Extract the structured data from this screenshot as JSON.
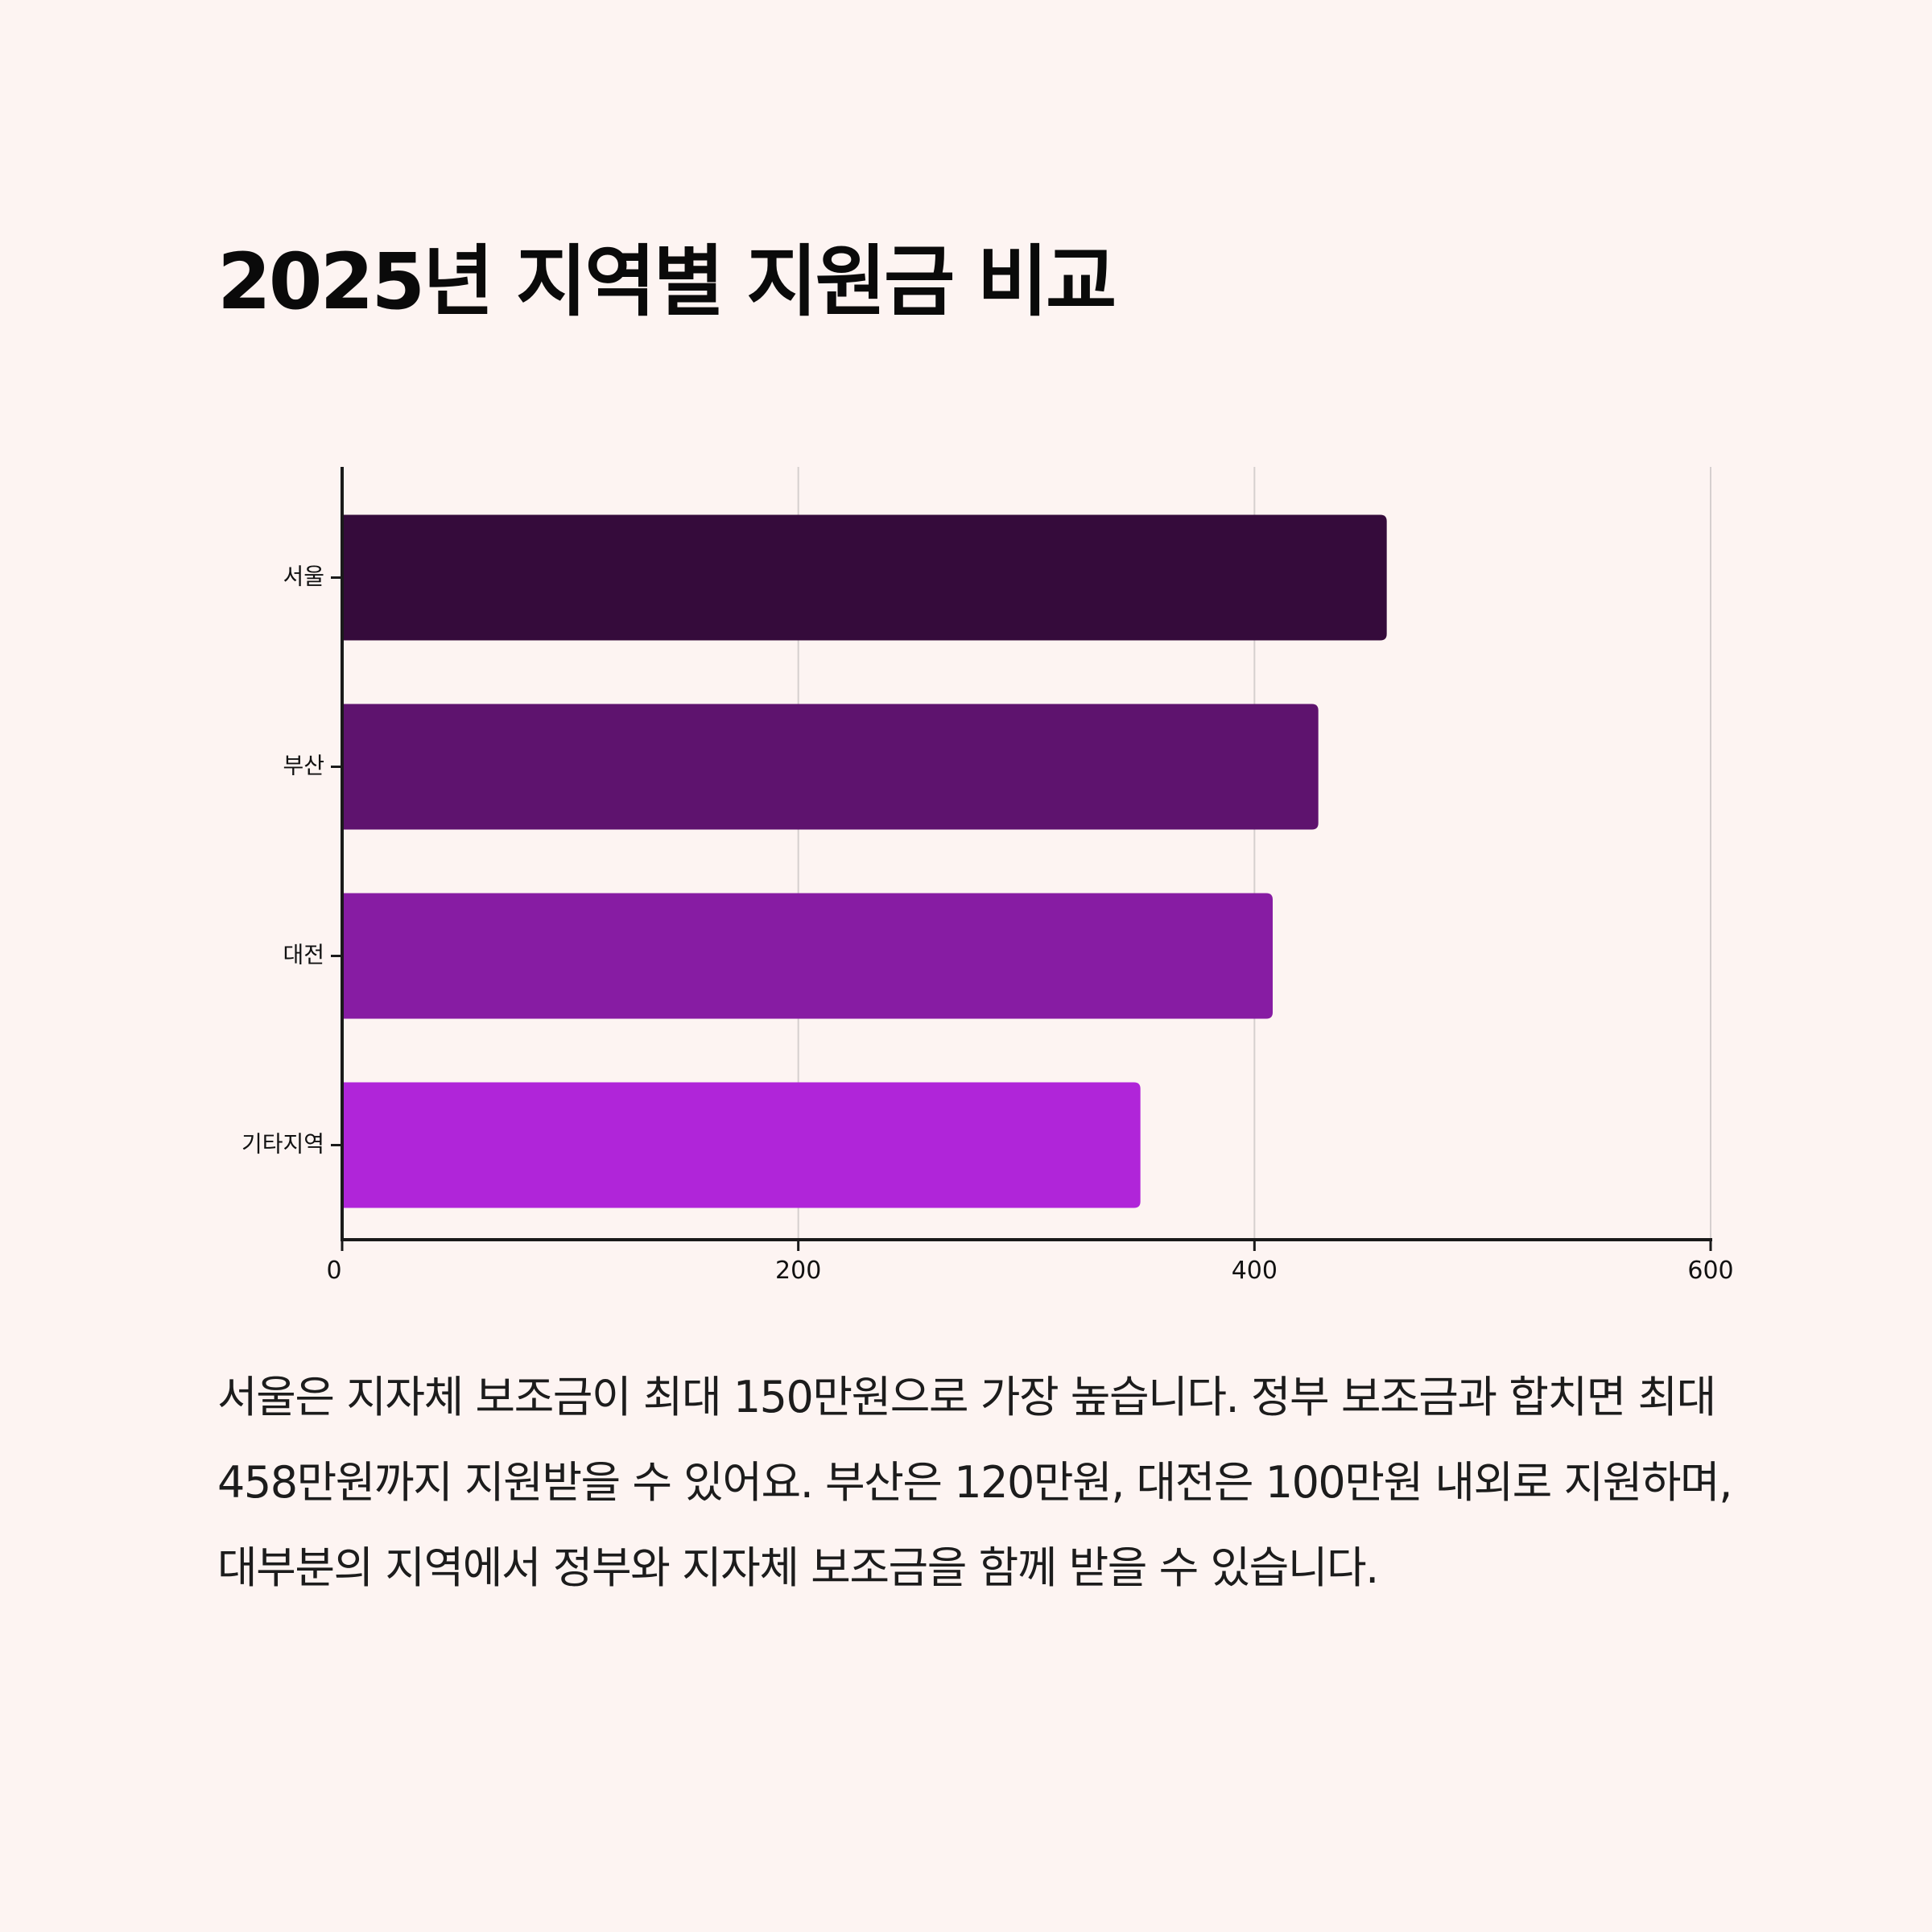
{
  "title": "2025년 지역별 지원금 비교",
  "description": "서울은 지자체 보조금이 최대 150만원으로 가장 높습니다. 정부 보조금과 합치면 최대 458만원까지 지원받을 수 있어요. 부산은 120만원, 대전은 100만원 내외로 지원하며, 대부분의 지역에서 정부와 지자체 보조금을 함께 받을 수 있습니다.",
  "chart_data": {
    "type": "bar",
    "orientation": "horizontal",
    "title": "",
    "xlabel": "",
    "ylabel": "",
    "categories": [
      "서울",
      "부산",
      "대전",
      "기타지역"
    ],
    "values": [
      458,
      428,
      408,
      350
    ],
    "colors": [
      "#350b3b",
      "#5e136e",
      "#871ca3",
      "#b025d9"
    ],
    "xlim": [
      0,
      600
    ],
    "xticks": [
      0,
      200,
      400,
      600
    ],
    "grid": "vertical",
    "legend": "none"
  }
}
